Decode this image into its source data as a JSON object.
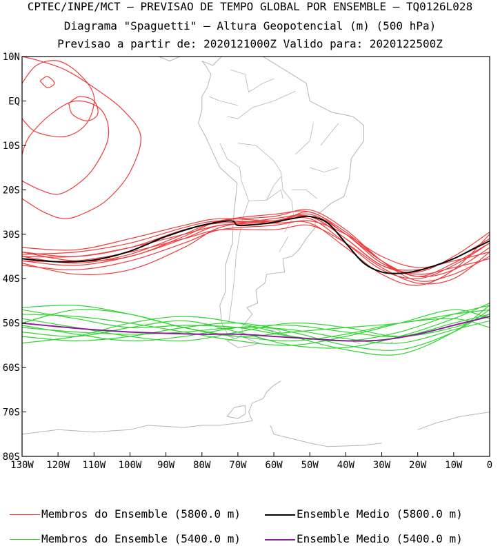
{
  "header": {
    "line1": "CPTEC/INPE/MCT – PREVISAO DE TEMPO GLOBAL POR ENSEMBLE – TQ0126L028",
    "line2": "Diagrama \"Spaguetti\" – Altura Geopotencial (m) (500 hPa)",
    "line3": "Previsao a partir de: 2020121000Z  Valido para: 2020122500Z"
  },
  "chart_data": {
    "type": "line",
    "title": "Diagrama \"Spaguetti\" – Altura Geopotencial (m) (500 hPa)",
    "x_ticks": [
      "130W",
      "120W",
      "110W",
      "100W",
      "90W",
      "80W",
      "70W",
      "60W",
      "50W",
      "40W",
      "30W",
      "20W",
      "10W",
      "0"
    ],
    "y_ticks": [
      "10N",
      "EQ",
      "10S",
      "20S",
      "30S",
      "40S",
      "50S",
      "60S",
      "70S",
      "80S"
    ],
    "xlim": [
      -130,
      0
    ],
    "ylim": [
      -80,
      10
    ],
    "colors": {
      "members5800": "#ef3b3b",
      "mean5800": "#000000",
      "members5400": "#2fd42f",
      "mean5400": "#8b1a9b",
      "coast": "#b4b4b4"
    },
    "series": [
      {
        "name": "Ensemble Medio (5800.0 m)",
        "color": "#000000",
        "lon": [
          -130,
          -120,
          -110,
          -100,
          -90,
          -80,
          -72,
          -70,
          -65,
          -60,
          -55,
          -50,
          -45,
          -40,
          -35,
          -30,
          -25,
          -20,
          -15,
          -10,
          -5,
          0
        ],
        "lat": [
          -35.5,
          -36.2,
          -35.8,
          -33.8,
          -30.5,
          -28,
          -27,
          -28,
          -27.8,
          -27.3,
          -26.5,
          -26,
          -27.5,
          -32,
          -36.5,
          -38.5,
          -38.8,
          -38.2,
          -37,
          -35.5,
          -33.5,
          -31.5
        ]
      },
      {
        "name": "Ensemble Medio (5400.0 m)",
        "color": "#8b1a9b",
        "lon": [
          -130,
          -120,
          -110,
          -100,
          -90,
          -80,
          -70,
          -60,
          -50,
          -40,
          -30,
          -20,
          -10,
          0
        ],
        "lat": [
          -50,
          -50.8,
          -51.5,
          -52,
          -52.3,
          -52.5,
          -52.5,
          -53,
          -53.5,
          -54,
          -53.8,
          -52.5,
          -50.5,
          -48.5
        ]
      }
    ],
    "members_5800": [
      {
        "lon": [
          -130,
          -115,
          -100,
          -85,
          -75,
          -60,
          -50,
          -40,
          -30,
          -20,
          -10,
          0
        ],
        "lat": [
          -34,
          -35,
          -33,
          -29,
          -27.5,
          -27,
          -26,
          -31,
          -37,
          -38,
          -35.5,
          -31
        ]
      },
      {
        "lon": [
          -130,
          -115,
          -100,
          -85,
          -75,
          -60,
          -50,
          -40,
          -30,
          -20,
          -10,
          0
        ],
        "lat": [
          -36,
          -37,
          -35,
          -31,
          -28,
          -27.5,
          -25,
          -30,
          -36,
          -39.5,
          -38,
          -33
        ]
      },
      {
        "lon": [
          -130,
          -115,
          -100,
          -85,
          -75,
          -60,
          -50,
          -40,
          -30,
          -20,
          -10,
          0
        ],
        "lat": [
          -33,
          -33.5,
          -31,
          -28,
          -26.5,
          -27,
          -26.5,
          -32,
          -38,
          -40,
          -37,
          -32
        ]
      },
      {
        "lon": [
          -130,
          -115,
          -100,
          -85,
          -75,
          -60,
          -50,
          -40,
          -30,
          -20,
          -10,
          0
        ],
        "lat": [
          -37,
          -38,
          -36,
          -32,
          -29,
          -28,
          -27,
          -30,
          -35,
          -37.5,
          -36,
          -34
        ]
      },
      {
        "lon": [
          -130,
          -115,
          -100,
          -85,
          -75,
          -60,
          -50,
          -40,
          -30,
          -20,
          -10,
          0
        ],
        "lat": [
          -35,
          -36.5,
          -34.5,
          -30,
          -27,
          -26,
          -24.5,
          -29,
          -36,
          -40.5,
          -39,
          -35
        ]
      },
      {
        "lon": [
          -130,
          -115,
          -100,
          -85,
          -75,
          -60,
          -50,
          -40,
          -30,
          -20,
          -10,
          0
        ],
        "lat": [
          -34.5,
          -34,
          -32,
          -28.5,
          -27,
          -27.5,
          -27.5,
          -33,
          -39,
          -41.5,
          -38,
          -30
        ]
      },
      {
        "lon": [
          -130,
          -115,
          -100,
          -85,
          -75,
          -60,
          -50,
          -40,
          -30,
          -20,
          -10,
          0
        ],
        "lat": [
          -36.5,
          -39,
          -38,
          -33,
          -28.5,
          -26.5,
          -26,
          -31,
          -37,
          -38.5,
          -35,
          -29.5
        ]
      },
      {
        "lon": [
          -130,
          -115,
          -100,
          -85,
          -75,
          -60,
          -50,
          -40,
          -30,
          -20,
          -10,
          0
        ],
        "lat": [
          -35,
          -35,
          -33,
          -30,
          -28,
          -27,
          -25.5,
          -30,
          -36.5,
          -39,
          -37.5,
          -35.5
        ]
      },
      {
        "lon": [
          -130,
          -115,
          -100,
          -85,
          -75,
          -60,
          -50,
          -40,
          -30,
          -20,
          -10,
          0
        ],
        "lat": [
          -36,
          -36,
          -34,
          -31,
          -29,
          -29,
          -28,
          -32,
          -37.5,
          -41,
          -40,
          -34
        ]
      },
      {
        "lon": [
          -130,
          -115,
          -100,
          -85,
          -75,
          -60,
          -50,
          -40,
          -30,
          -20,
          -10,
          0
        ],
        "lat": [
          -34,
          -36,
          -35,
          -30.5,
          -27,
          -25.5,
          -25,
          -29.5,
          -36,
          -39.5,
          -36.5,
          -32
        ]
      }
    ],
    "members_5400": [
      {
        "lon": [
          -130,
          -115,
          -100,
          -85,
          -70,
          -55,
          -40,
          -25,
          -10,
          0
        ],
        "lat": [
          -47,
          -49,
          -51,
          -50.5,
          -51,
          -53,
          -54,
          -52,
          -48,
          -46
        ]
      },
      {
        "lon": [
          -130,
          -115,
          -100,
          -85,
          -70,
          -55,
          -40,
          -25,
          -10,
          0
        ],
        "lat": [
          -50,
          -47,
          -48,
          -51,
          -53,
          -52,
          -51,
          -50,
          -48,
          -47
        ]
      },
      {
        "lon": [
          -130,
          -115,
          -100,
          -85,
          -70,
          -55,
          -40,
          -25,
          -10,
          0
        ],
        "lat": [
          -52,
          -53,
          -51,
          -49.5,
          -52,
          -55,
          -55.5,
          -53,
          -49,
          -45.5
        ]
      },
      {
        "lon": [
          -130,
          -115,
          -100,
          -85,
          -70,
          -55,
          -40,
          -25,
          -10,
          0
        ],
        "lat": [
          -49,
          -51,
          -53,
          -54,
          -52,
          -50,
          -51,
          -53,
          -51,
          -48
        ]
      },
      {
        "lon": [
          -130,
          -115,
          -100,
          -85,
          -70,
          -55,
          -40,
          -25,
          -10,
          0
        ],
        "lat": [
          -53,
          -54,
          -53,
          -51,
          -50,
          -52,
          -55,
          -56,
          -52,
          -47
        ]
      },
      {
        "lon": [
          -130,
          -115,
          -100,
          -85,
          -70,
          -55,
          -40,
          -25,
          -10,
          0
        ],
        "lat": [
          -48,
          -48.5,
          -50,
          -52,
          -54,
          -55,
          -53,
          -50,
          -47,
          -49
        ]
      },
      {
        "lon": [
          -130,
          -115,
          -100,
          -85,
          -70,
          -55,
          -40,
          -25,
          -10,
          0
        ],
        "lat": [
          -51,
          -52,
          -52.5,
          -52,
          -51,
          -51.5,
          -53.5,
          -54.5,
          -51.5,
          -49.5
        ]
      },
      {
        "lon": [
          -130,
          -115,
          -100,
          -85,
          -70,
          -55,
          -40,
          -25,
          -10,
          0
        ],
        "lat": [
          -54.5,
          -53,
          -50,
          -48.5,
          -50,
          -53,
          -56,
          -57,
          -52,
          -46
        ]
      },
      {
        "lon": [
          -130,
          -115,
          -100,
          -85,
          -70,
          -55,
          -40,
          -25,
          -10,
          0
        ],
        "lat": [
          -46.5,
          -46,
          -48,
          -51,
          -53,
          -54,
          -52.5,
          -50,
          -49,
          -51
        ]
      },
      {
        "lon": [
          -130,
          -115,
          -100,
          -85,
          -70,
          -55,
          -40,
          -25,
          -10,
          0
        ],
        "lat": [
          -50.5,
          -52.5,
          -54,
          -53,
          -51,
          -50.5,
          -52,
          -53,
          -50,
          -48
        ]
      }
    ],
    "tropical_contours": [
      {
        "lon": [
          -130,
          -126,
          -120,
          -114,
          -110,
          -112,
          -118,
          -126,
          -130
        ],
        "lat": [
          4,
          8,
          9,
          6,
          1,
          -5,
          -8,
          -7,
          -4
        ]
      },
      {
        "lon": [
          -130,
          -125,
          -120,
          -115,
          -110,
          -106,
          -108,
          -115,
          -122,
          -128,
          -130
        ],
        "lat": [
          -18,
          -20,
          -21,
          -19,
          -15,
          -8,
          -2,
          0,
          -3,
          -8,
          -12
        ]
      },
      {
        "lon": [
          -117,
          -114,
          -110,
          -109,
          -112,
          -116,
          -117
        ],
        "lat": [
          -0.5,
          1,
          0,
          -3,
          -4.5,
          -3,
          -0.5
        ]
      },
      {
        "lon": [
          -125,
          -123,
          -121,
          -123,
          -125
        ],
        "lat": [
          4.5,
          5.5,
          4,
          3,
          4.5
        ]
      },
      {
        "lon": [
          -130,
          -124,
          -118,
          -112,
          -106,
          -100,
          -97,
          -102,
          -110,
          -118,
          -125,
          -130
        ],
        "lat": [
          -22,
          -25,
          -26.5,
          -25,
          -22,
          -16,
          -8,
          -2,
          3,
          7,
          9,
          10
        ]
      }
    ]
  },
  "legend": {
    "members_5800": "Membros do Ensemble (5800.0 m)",
    "mean_5800": "Ensemble Medio (5800.0 m)",
    "members_5400": "Membros do Ensemble (5400.0 m)",
    "mean_5400": "Ensemble Medio (5400.0 m)"
  }
}
